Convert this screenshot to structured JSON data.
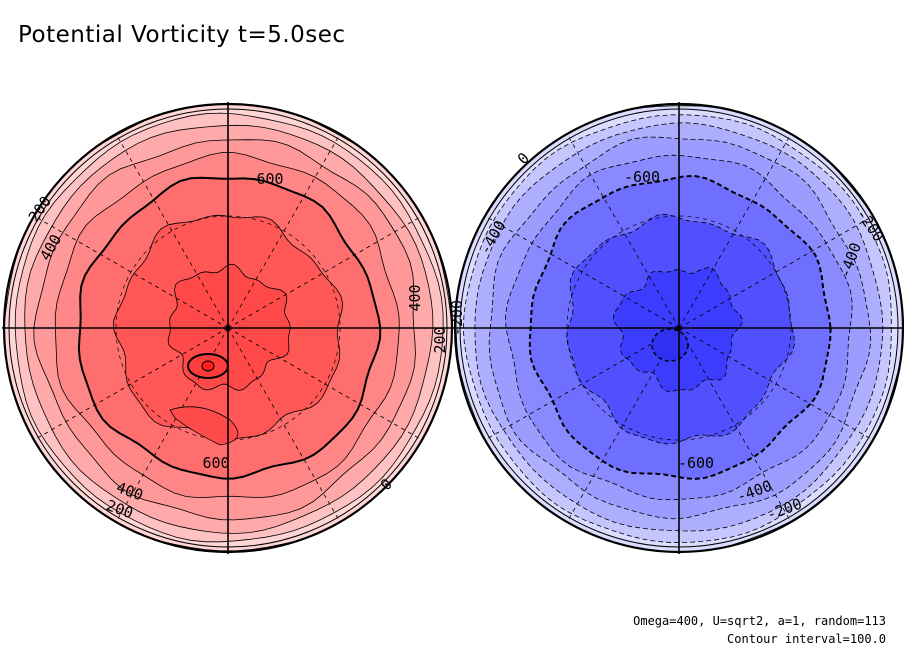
{
  "title": "Potential Vorticity t=5.0sec",
  "footer": {
    "line1": "Omega=400, U=sqrt2, a=1, random=113",
    "line2": "Contour interval=100.0"
  },
  "chart_data": [
    {
      "type": "contour",
      "hemisphere": "north",
      "projection": "polar",
      "color_scheme": "red",
      "contour_interval": 100.0,
      "fill_levels": [
        {
          "value": 0,
          "color": "#ffd6d6"
        },
        {
          "value": 100,
          "color": "#ffc2c2"
        },
        {
          "value": 200,
          "color": "#ffaaaa"
        },
        {
          "value": 300,
          "color": "#ff9898"
        },
        {
          "value": 400,
          "color": "#ff8686"
        },
        {
          "value": 500,
          "color": "#ff6e6e"
        },
        {
          "value": 600,
          "color": "#ff5656"
        },
        {
          "value": 700,
          "color": "#ff4848"
        }
      ],
      "contour_labels": [
        {
          "text": "200",
          "rotate": -55
        },
        {
          "text": "400",
          "rotate": -60
        },
        {
          "text": "600",
          "rotate": 0
        },
        {
          "text": "400",
          "rotate": -90
        },
        {
          "text": "200",
          "rotate": -90
        },
        {
          "text": "600",
          "rotate": 0
        },
        {
          "text": "400",
          "rotate": 20
        },
        {
          "text": "200",
          "rotate": 20
        },
        {
          "text": "0",
          "rotate": -45
        }
      ]
    },
    {
      "type": "contour",
      "hemisphere": "south",
      "projection": "polar",
      "color_scheme": "blue",
      "contour_interval": 100.0,
      "fill_levels": [
        {
          "value": 0,
          "color": "#dcdcff"
        },
        {
          "value": -100,
          "color": "#c6c6ff"
        },
        {
          "value": -200,
          "color": "#aeaeff"
        },
        {
          "value": -300,
          "color": "#9c9cff"
        },
        {
          "value": -400,
          "color": "#8a8aff"
        },
        {
          "value": -500,
          "color": "#6e6eff"
        },
        {
          "value": -600,
          "color": "#5050ff"
        },
        {
          "value": -700,
          "color": "#3c3cff"
        }
      ],
      "contour_labels": [
        {
          "text": "0",
          "rotate": -45
        },
        {
          "text": "-600",
          "rotate": 0
        },
        {
          "text": "-200",
          "rotate": 55
        },
        {
          "text": "-400",
          "rotate": -60
        },
        {
          "text": "-400",
          "rotate": -70
        },
        {
          "text": "-200",
          "rotate": -90
        },
        {
          "text": "-600",
          "rotate": 0
        },
        {
          "text": "-400",
          "rotate": -20
        },
        {
          "text": "-200",
          "rotate": -20
        }
      ]
    }
  ]
}
